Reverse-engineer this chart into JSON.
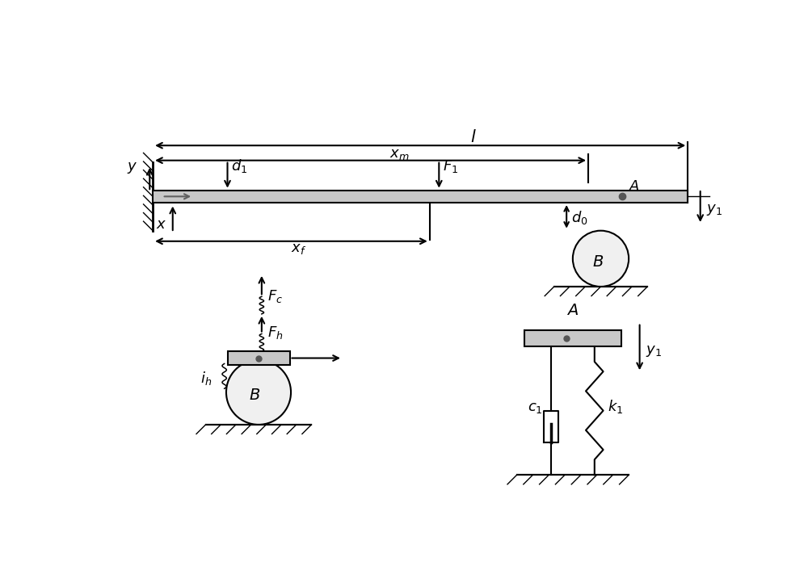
{
  "bg_color": "#ffffff",
  "line_color": "#000000",
  "beam_color": "#c8c8c8",
  "beam_edge_color": "#000000",
  "fig_width": 10.0,
  "fig_height": 7.06,
  "dpi": 100,
  "label_fontsize": 13
}
